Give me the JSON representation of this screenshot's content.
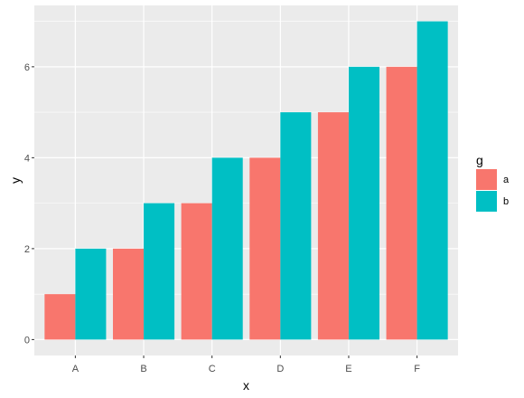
{
  "chart_data": {
    "type": "bar",
    "categories": [
      "A",
      "B",
      "C",
      "D",
      "E",
      "F"
    ],
    "series": [
      {
        "name": "a",
        "values": [
          1,
          2,
          3,
          4,
          5,
          6
        ],
        "color": "#F8766D"
      },
      {
        "name": "b",
        "values": [
          2,
          3,
          4,
          5,
          6,
          7
        ],
        "color": "#00BFC4"
      }
    ],
    "xlabel": "x",
    "ylabel": "y",
    "ylim": [
      -0.35,
      7.35
    ],
    "yticks": [
      0,
      2,
      4,
      6
    ],
    "legend_title": "g",
    "legend_position": "right",
    "grid": true,
    "panel_background": "#EBEBEB",
    "grid_color": "#FFFFFF"
  }
}
